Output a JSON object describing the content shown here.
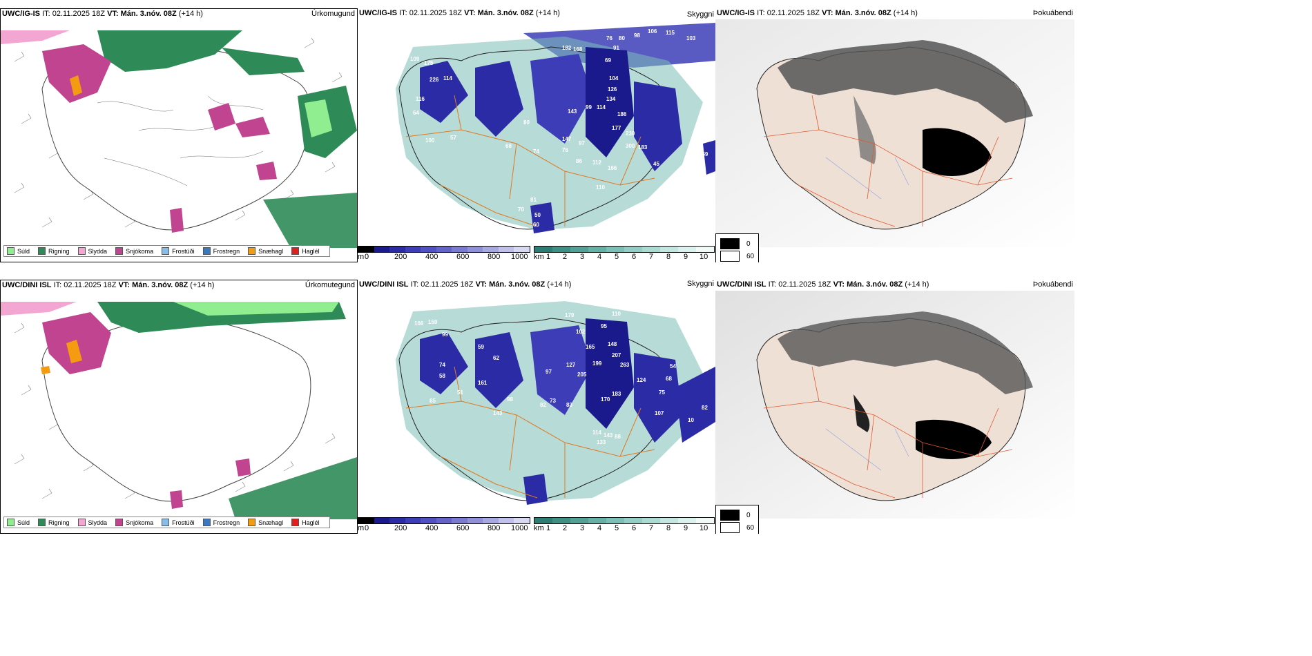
{
  "header_common": {
    "it_label": "IT:",
    "it_value": "02.11.2025 18Z",
    "vt_label": "VT:",
    "vt_value": "Mán. 3.nóv. 08Z",
    "lead": "(+14 h)"
  },
  "rows": [
    {
      "model": "UWC/IG-IS",
      "precip_title": "Úrkomugund",
      "cloud_title": "Skyggni",
      "dense_title": "Þokuábendi",
      "visibility_numbers": [
        "76",
        "80",
        "98",
        "106",
        "115",
        "103",
        "182",
        "168",
        "91",
        "69",
        "104",
        "126",
        "134",
        "99",
        "114",
        "143",
        "186",
        "147",
        "177",
        "230",
        "300",
        "183",
        "112",
        "166",
        "110",
        "159",
        "45",
        "86",
        "76",
        "97",
        "57",
        "100",
        "74",
        "68",
        "80",
        "64",
        "116",
        "109",
        "175",
        "226",
        "114",
        "81",
        "70",
        "60",
        "50"
      ]
    },
    {
      "model": "UWC/DINI ISL",
      "precip_title": "Úrkomutegund",
      "cloud_title": "Skyggni",
      "dense_title": "Þokuábendi",
      "visibility_numbers": [
        "76",
        "110",
        "179",
        "95",
        "148",
        "207",
        "263",
        "165",
        "127",
        "199",
        "205",
        "102",
        "124",
        "183",
        "170",
        "114",
        "143",
        "88",
        "133",
        "107",
        "82",
        "10",
        "75",
        "68",
        "54",
        "59",
        "62",
        "74",
        "58",
        "161",
        "51",
        "85",
        "166",
        "159",
        "99",
        "97",
        "98",
        "143",
        "82",
        "73",
        "83"
      ]
    }
  ],
  "precip_legend": [
    {
      "label": "Súld",
      "color": "#90ee90"
    },
    {
      "label": "Rigning",
      "color": "#2e8b57"
    },
    {
      "label": "Slydda",
      "color": "#f4a6d2"
    },
    {
      "label": "Snjókoma",
      "color": "#c0448f"
    },
    {
      "label": "Frostúði",
      "color": "#87bde8"
    },
    {
      "label": "Frostregn",
      "color": "#3a78c0"
    },
    {
      "label": "Snæhagl",
      "color": "#f39c12"
    },
    {
      "label": "Haglél",
      "color": "#e02020"
    }
  ],
  "cloud_base_bar": {
    "unit": "m",
    "ticks": [
      "0",
      "200",
      "400",
      "600",
      "800",
      "1000"
    ],
    "colors": [
      "#000000",
      "#1a1a8c",
      "#2b2ba6",
      "#3d3db8",
      "#5050c2",
      "#6464c8",
      "#7a7ad0",
      "#9090d8",
      "#a8a8e0",
      "#c0c0ea",
      "#d8d8f2"
    ]
  },
  "visibility_bar": {
    "unit": "km",
    "ticks": [
      "1",
      "2",
      "3",
      "4",
      "5",
      "6",
      "7",
      "8",
      "9",
      "10"
    ],
    "colors": [
      "#2e7d74",
      "#3f8f85",
      "#52a096",
      "#66b0a6",
      "#7cbfb6",
      "#93cdc5",
      "#abdad3",
      "#c3e6e0",
      "#dbf1ed",
      "#f2faf8"
    ]
  },
  "fog_legend": [
    {
      "label": "0",
      "color": "#000000"
    },
    {
      "label": "60",
      "color": "#ffffff"
    }
  ]
}
